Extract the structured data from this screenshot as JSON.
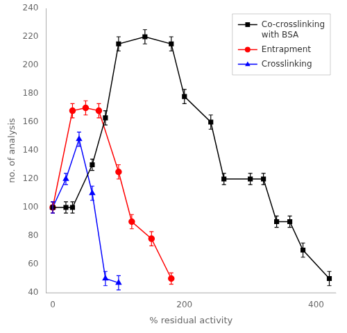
{
  "chart_data": {
    "type": "line",
    "xlabel": "% residual activity",
    "ylabel": "no. of analysis",
    "xlim": [
      -10,
      430
    ],
    "ylim": [
      40,
      240
    ],
    "xticks": [
      0,
      200,
      400
    ],
    "yticks": [
      40,
      60,
      80,
      100,
      120,
      140,
      160,
      180,
      200,
      220,
      240
    ],
    "grid": false,
    "legend": "upper right",
    "series": [
      {
        "name": "Co-crosslinking\nwith BSA",
        "color": "black",
        "marker": "square",
        "x": [
          0,
          20,
          30,
          60,
          80,
          100,
          140,
          180,
          200,
          240,
          260,
          300,
          320,
          340,
          360,
          380,
          420
        ],
        "values": [
          100,
          100,
          100,
          130,
          163,
          215,
          220,
          215,
          178,
          160,
          120,
          120,
          120,
          90,
          90,
          70,
          50
        ],
        "yerr": [
          4,
          4,
          4,
          4,
          5,
          5,
          5,
          5,
          5,
          5,
          4,
          4,
          4,
          4,
          4,
          5,
          5
        ]
      },
      {
        "name": "Entrapment",
        "color": "red",
        "marker": "circle",
        "x": [
          0,
          30,
          50,
          70,
          100,
          120,
          150,
          180
        ],
        "values": [
          100,
          168,
          170,
          168,
          125,
          90,
          78,
          50
        ],
        "yerr": [
          4,
          5,
          5,
          5,
          5,
          5,
          5,
          4
        ]
      },
      {
        "name": "Crosslinking",
        "color": "blue",
        "marker": "triangle",
        "x": [
          0,
          20,
          40,
          60,
          80,
          100
        ],
        "values": [
          100,
          120,
          148,
          110,
          50,
          47
        ],
        "yerr": [
          4,
          4,
          5,
          5,
          5,
          5
        ]
      }
    ]
  }
}
